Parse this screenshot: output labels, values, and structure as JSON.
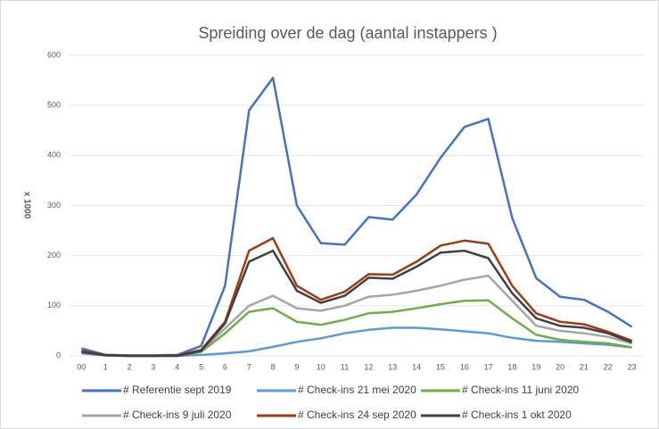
{
  "chart_data": {
    "type": "line",
    "title": "Spreiding over de dag (aantal instappers )",
    "y_label": "x 1000",
    "categories": [
      "00",
      "1",
      "2",
      "3",
      "4",
      "5",
      "6",
      "7",
      "8",
      "9",
      "10",
      "11",
      "12",
      "13",
      "14",
      "15",
      "16",
      "17",
      "18",
      "19",
      "20",
      "21",
      "22",
      "23"
    ],
    "ylim": [
      0,
      600
    ],
    "yticks": [
      0,
      100,
      200,
      300,
      400,
      500,
      600
    ],
    "grid": true,
    "series": [
      {
        "name": "# Referentie sept 2019",
        "color": "#4472c4",
        "values": [
          15,
          2,
          1,
          1,
          2,
          20,
          140,
          490,
          555,
          300,
          225,
          222,
          277,
          272,
          322,
          395,
          457,
          473,
          275,
          155,
          118,
          112,
          88,
          58
        ]
      },
      {
        "name": "# Check-ins 21 mei 2020",
        "color": "#5b9bd5",
        "values": [
          5,
          1,
          0,
          0,
          0,
          2,
          5,
          9,
          18,
          28,
          35,
          45,
          52,
          56,
          56,
          53,
          49,
          45,
          36,
          30,
          28,
          25,
          22,
          17
        ]
      },
      {
        "name": "# Check-ins 11 juni 2020",
        "color": "#70ad47",
        "values": [
          8,
          1,
          0,
          0,
          0,
          8,
          45,
          88,
          95,
          68,
          62,
          72,
          85,
          88,
          95,
          103,
          110,
          111,
          75,
          42,
          32,
          28,
          25,
          17
        ]
      },
      {
        "name": "# Check-ins 9 juli 2020",
        "color": "#a5a5a5",
        "values": [
          10,
          1,
          0,
          0,
          0,
          10,
          55,
          100,
          120,
          95,
          90,
          100,
          118,
          122,
          130,
          140,
          152,
          160,
          110,
          60,
          50,
          45,
          38,
          25
        ]
      },
      {
        "name": "# Check-ins 24 sep 2020",
        "color": "#9e3a14",
        "values": [
          10,
          2,
          0,
          0,
          1,
          12,
          68,
          210,
          235,
          140,
          112,
          128,
          163,
          162,
          188,
          220,
          230,
          224,
          140,
          85,
          68,
          63,
          48,
          30
        ]
      },
      {
        "name": "# Check-ins 1 okt 2020",
        "color": "#404040",
        "values": [
          8,
          1,
          0,
          0,
          0,
          10,
          65,
          188,
          210,
          130,
          106,
          120,
          156,
          154,
          178,
          206,
          210,
          195,
          125,
          75,
          60,
          56,
          45,
          27
        ]
      }
    ]
  }
}
